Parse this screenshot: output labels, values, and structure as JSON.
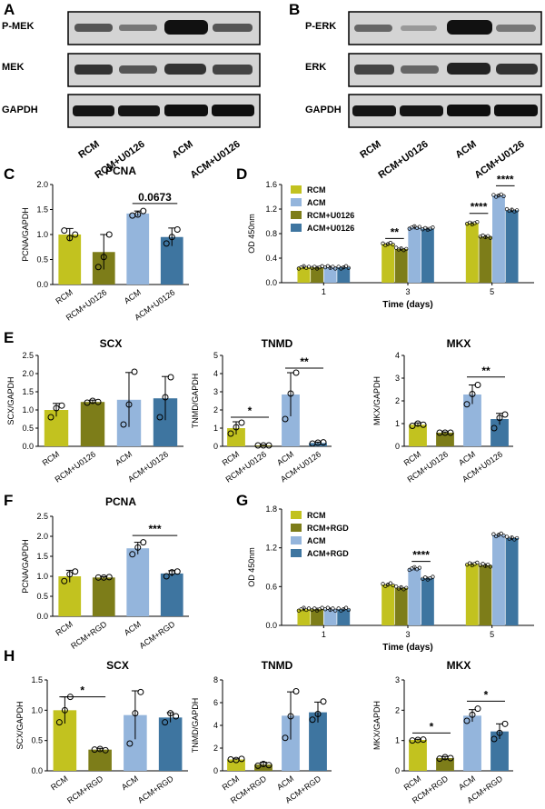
{
  "colors": {
    "yg": "#c2c21f",
    "ol": "#7d7d19",
    "lb": "#94b5dc",
    "db": "#3e75a0"
  },
  "panel_labels": [
    "A",
    "B",
    "C",
    "D",
    "E",
    "F",
    "G",
    "H"
  ],
  "blots": {
    "left_labels": [
      "P-MEK",
      "MEK",
      "GAPDH"
    ],
    "right_labels": [
      "P-ERK",
      "ERK",
      "GAPDH"
    ],
    "lanes": [
      "RCM",
      "RCM+U0126",
      "ACM",
      "ACM+U0126"
    ]
  },
  "chart_data": [
    {
      "id": "C",
      "type": "bar",
      "title": "PCNA",
      "ylabel": "PCNA/GAPDH",
      "ylim": [
        0,
        2.0
      ],
      "yticks": [
        "0.0",
        "0.5",
        "1.0",
        "1.5",
        "2.0"
      ],
      "categories": [
        "RCM",
        "RCM+U0126",
        "ACM",
        "ACM+U0126"
      ],
      "colors": [
        "yg",
        "ol",
        "lb",
        "db"
      ],
      "values": [
        1.0,
        0.65,
        1.42,
        0.95
      ],
      "err": [
        0.12,
        0.35,
        0.05,
        0.18
      ],
      "points": [
        [
          1.08,
          0.93,
          1.0
        ],
        [
          0.35,
          0.55,
          1.0
        ],
        [
          1.38,
          1.4,
          1.47
        ],
        [
          0.82,
          0.95,
          1.1
        ]
      ],
      "annotations": [
        {
          "text": "0.0673",
          "from": 2,
          "to": 3,
          "y": 1.62
        }
      ]
    },
    {
      "id": "D",
      "type": "bar",
      "ylabel": "OD 450nm",
      "xlabel": "Time (days)",
      "ylim": [
        0,
        1.6
      ],
      "yticks": [
        "0.0",
        "0.4",
        "0.8",
        "1.2",
        "1.6"
      ],
      "groups": [
        "1",
        "3",
        "5"
      ],
      "series_colors": [
        "yg",
        "lb",
        "ol",
        "db"
      ],
      "order": [
        {
          "name": "RCM",
          "color": "yg"
        },
        {
          "name": "RCM+U0126",
          "color": "ol"
        },
        {
          "name": "ACM",
          "color": "lb"
        },
        {
          "name": "ACM+U0126",
          "color": "db"
        }
      ],
      "legend": [
        {
          "name": "RCM",
          "color": "yg"
        },
        {
          "name": "ACM",
          "color": "lb"
        },
        {
          "name": "RCM+U0126",
          "color": "ol"
        },
        {
          "name": "ACM+U0126",
          "color": "db"
        }
      ],
      "series": [
        {
          "name": "RCM",
          "values": [
            0.25,
            0.63,
            0.97
          ]
        },
        {
          "name": "RCM+U0126",
          "values": [
            0.25,
            0.55,
            0.75
          ]
        },
        {
          "name": "ACM",
          "values": [
            0.25,
            0.9,
            1.42
          ]
        },
        {
          "name": "ACM+U0126",
          "values": [
            0.25,
            0.88,
            1.18
          ]
        }
      ],
      "err": 0.03,
      "dots": 5,
      "annotations": [
        {
          "text": "**",
          "group": 1,
          "from": 0,
          "to": 1,
          "y": 0.72
        },
        {
          "text": "****",
          "group": 2,
          "from": 0,
          "to": 1,
          "y": 1.13
        },
        {
          "text": "****",
          "group": 2,
          "from": 2,
          "to": 3,
          "y": 1.58
        }
      ]
    },
    {
      "id": "E1",
      "type": "bar",
      "title": "SCX",
      "ylabel": "SCX/GAPDH",
      "ylim": [
        0,
        2.5
      ],
      "yticks": [
        "0.0",
        "0.5",
        "1.0",
        "1.5",
        "2.0",
        "2.5"
      ],
      "categories": [
        "RCM",
        "RCM+U0126",
        "ACM",
        "ACM+U0126"
      ],
      "colors": [
        "yg",
        "ol",
        "lb",
        "db"
      ],
      "values": [
        1.0,
        1.22,
        1.28,
        1.32
      ],
      "err": [
        0.18,
        0.05,
        0.75,
        0.6
      ],
      "points": [
        [
          0.8,
          1.05,
          1.12
        ],
        [
          1.2,
          1.25,
          1.22
        ],
        [
          0.6,
          1.15,
          2.05
        ],
        [
          0.8,
          1.35,
          1.9
        ]
      ],
      "annotations": []
    },
    {
      "id": "E2",
      "type": "bar",
      "title": "TNMD",
      "ylabel": "TNMD/GAPDH",
      "ylim": [
        0,
        5
      ],
      "yticks": [
        "0",
        "1",
        "2",
        "3",
        "4",
        "5"
      ],
      "categories": [
        "RCM",
        "RCM+U0126",
        "ACM",
        "ACM+U0126"
      ],
      "colors": [
        "yg",
        "ol",
        "lb",
        "db"
      ],
      "values": [
        1.0,
        0.05,
        2.85,
        0.18
      ],
      "err": [
        0.35,
        0.02,
        1.2,
        0.05
      ],
      "points": [
        [
          0.7,
          1.05,
          1.3
        ],
        [
          0.05,
          0.05,
          0.05
        ],
        [
          1.5,
          2.9,
          4.05
        ],
        [
          0.15,
          0.2,
          0.22
        ]
      ],
      "annotations": [
        {
          "text": "*",
          "from": 0,
          "to": 1,
          "y": 1.6
        },
        {
          "text": "**",
          "from": 2,
          "to": 3,
          "y": 4.3
        }
      ]
    },
    {
      "id": "E3",
      "type": "bar",
      "title": "MKX",
      "ylabel": "MKX/GAPDH",
      "ylim": [
        0,
        4
      ],
      "yticks": [
        "0",
        "1",
        "2",
        "3",
        "4"
      ],
      "categories": [
        "RCM",
        "RCM+U0126",
        "ACM",
        "ACM+U0126"
      ],
      "colors": [
        "yg",
        "ol",
        "lb",
        "db"
      ],
      "values": [
        0.95,
        0.6,
        2.28,
        1.2
      ],
      "err": [
        0.08,
        0.03,
        0.42,
        0.25
      ],
      "points": [
        [
          0.9,
          1.0,
          0.95
        ],
        [
          0.6,
          0.6,
          0.6
        ],
        [
          1.85,
          2.3,
          2.7
        ],
        [
          0.8,
          1.25,
          1.4
        ]
      ],
      "annotations": [
        {
          "text": "**",
          "from": 2,
          "to": 3,
          "y": 3.05
        }
      ]
    },
    {
      "id": "F",
      "type": "bar",
      "title": "PCNA",
      "ylabel": "PCNA/GAPDH",
      "ylim": [
        0,
        2.5
      ],
      "yticks": [
        "0.0",
        "0.5",
        "1.0",
        "1.5",
        "2.0",
        "2.5"
      ],
      "categories": [
        "RCM",
        "RCM+RGD",
        "ACM",
        "ACM+RGD"
      ],
      "colors": [
        "yg",
        "ol",
        "lb",
        "db"
      ],
      "values": [
        1.0,
        0.97,
        1.7,
        1.07
      ],
      "err": [
        0.15,
        0.02,
        0.15,
        0.07
      ],
      "points": [
        [
          0.88,
          1.05,
          1.12
        ],
        [
          0.97,
          0.97,
          0.98
        ],
        [
          1.55,
          1.72,
          1.85
        ],
        [
          1.0,
          1.1,
          1.12
        ]
      ],
      "annotations": [
        {
          "text": "***",
          "from": 2,
          "to": 3,
          "y": 2.02
        }
      ]
    },
    {
      "id": "G",
      "type": "bar",
      "ylabel": "OD 450nm",
      "xlabel": "Time (days)",
      "ylim": [
        0,
        1.8
      ],
      "yticks": [
        "0.0",
        "0.6",
        "1.2",
        "1.8"
      ],
      "groups": [
        "1",
        "3",
        "5"
      ],
      "order": [
        {
          "name": "RCM",
          "color": "yg"
        },
        {
          "name": "RCM+RGD",
          "color": "ol"
        },
        {
          "name": "ACM",
          "color": "lb"
        },
        {
          "name": "ACM+RGD",
          "color": "db"
        }
      ],
      "legend": [
        {
          "name": "RCM",
          "color": "yg"
        },
        {
          "name": "RCM+RGD",
          "color": "ol"
        },
        {
          "name": "ACM",
          "color": "lb"
        },
        {
          "name": "ACM+RGD",
          "color": "db"
        }
      ],
      "series": [
        {
          "name": "RCM",
          "values": [
            0.25,
            0.63,
            0.95
          ]
        },
        {
          "name": "RCM+RGD",
          "values": [
            0.25,
            0.58,
            0.93
          ]
        },
        {
          "name": "ACM",
          "values": [
            0.25,
            0.88,
            1.4
          ]
        },
        {
          "name": "ACM+RGD",
          "values": [
            0.25,
            0.73,
            1.35
          ]
        }
      ],
      "err": 0.03,
      "dots": 5,
      "annotations": [
        {
          "text": "****",
          "group": 1,
          "from": 2,
          "to": 3,
          "y": 0.99
        }
      ]
    },
    {
      "id": "H1",
      "type": "bar",
      "title": "SCX",
      "ylabel": "SCX/GAPDH",
      "ylim": [
        0,
        1.5
      ],
      "yticks": [
        "0.0",
        "0.5",
        "1.0",
        "1.5"
      ],
      "categories": [
        "RCM",
        "RCM+RGD",
        "ACM",
        "ACM+RGD"
      ],
      "colors": [
        "yg",
        "ol",
        "lb",
        "db"
      ],
      "values": [
        1.0,
        0.35,
        0.92,
        0.88
      ],
      "err": [
        0.22,
        0.02,
        0.4,
        0.08
      ],
      "points": [
        [
          0.8,
          1.0,
          1.22
        ],
        [
          0.35,
          0.36,
          0.34
        ],
        [
          0.45,
          0.95,
          1.3
        ],
        [
          0.8,
          0.95,
          0.9
        ]
      ],
      "annotations": [
        {
          "text": "*",
          "from": 0,
          "to": 1,
          "y": 1.22
        }
      ]
    },
    {
      "id": "H2",
      "type": "bar",
      "title": "TNMD",
      "ylabel": "TNMD/GAPDH",
      "ylim": [
        0,
        8
      ],
      "yticks": [
        "0",
        "2",
        "4",
        "6",
        "8"
      ],
      "categories": [
        "RCM",
        "RCM+RGD",
        "ACM",
        "ACM+RGD"
      ],
      "colors": [
        "yg",
        "ol",
        "lb",
        "db"
      ],
      "values": [
        1.0,
        0.55,
        4.85,
        5.15
      ],
      "err": [
        0.05,
        0.2,
        2.1,
        0.9
      ],
      "points": [
        [
          1.0,
          0.95,
          1.05
        ],
        [
          0.45,
          0.6,
          0.5
        ],
        [
          2.9,
          4.8,
          7.0
        ],
        [
          4.5,
          5.0,
          6.1
        ]
      ],
      "annotations": []
    },
    {
      "id": "H3",
      "type": "bar",
      "title": "MKX",
      "ylabel": "MKX/GAPDH",
      "ylim": [
        0,
        3
      ],
      "yticks": [
        "0",
        "1",
        "2",
        "3"
      ],
      "categories": [
        "RCM",
        "RCM+RGD",
        "ACM",
        "ACM+RGD"
      ],
      "colors": [
        "yg",
        "ol",
        "lb",
        "db"
      ],
      "values": [
        1.02,
        0.42,
        1.82,
        1.3
      ],
      "err": [
        0.02,
        0.05,
        0.2,
        0.25
      ],
      "points": [
        [
          1.0,
          1.02,
          1.03
        ],
        [
          0.4,
          0.45,
          0.42
        ],
        [
          1.65,
          1.85,
          2.05
        ],
        [
          1.05,
          1.25,
          1.55
        ]
      ],
      "annotations": [
        {
          "text": "*",
          "from": 0,
          "to": 1,
          "y": 1.25
        },
        {
          "text": "*",
          "from": 2,
          "to": 3,
          "y": 2.3
        }
      ]
    }
  ]
}
